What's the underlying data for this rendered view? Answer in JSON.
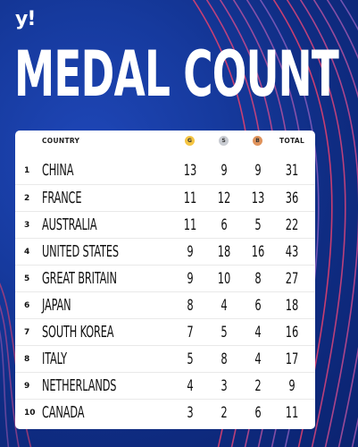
{
  "brand": {
    "logo": "y!"
  },
  "title": "MEDAL COUNT",
  "table": {
    "headers": {
      "country": "COUNTRY",
      "gold": "G",
      "silver": "S",
      "bronze": "B",
      "total": "TOTAL"
    },
    "colors": {
      "gold": "#f5c542",
      "silver": "#c9ccd2",
      "bronze": "#e0935c"
    },
    "rows": [
      {
        "rank": "1",
        "country": "CHINA",
        "gold": "13",
        "silver": "9",
        "bronze": "9",
        "total": "31"
      },
      {
        "rank": "2",
        "country": "FRANCE",
        "gold": "11",
        "silver": "12",
        "bronze": "13",
        "total": "36"
      },
      {
        "rank": "3",
        "country": "AUSTRALIA",
        "gold": "11",
        "silver": "6",
        "bronze": "5",
        "total": "22"
      },
      {
        "rank": "4",
        "country": "UNITED STATES",
        "gold": "9",
        "silver": "18",
        "bronze": "16",
        "total": "43"
      },
      {
        "rank": "5",
        "country": "GREAT BRITAIN",
        "gold": "9",
        "silver": "10",
        "bronze": "8",
        "total": "27"
      },
      {
        "rank": "6",
        "country": "JAPAN",
        "gold": "8",
        "silver": "4",
        "bronze": "6",
        "total": "18"
      },
      {
        "rank": "7",
        "country": "SOUTH KOREA",
        "gold": "7",
        "silver": "5",
        "bronze": "4",
        "total": "16"
      },
      {
        "rank": "8",
        "country": "ITALY",
        "gold": "5",
        "silver": "8",
        "bronze": "4",
        "total": "17"
      },
      {
        "rank": "9",
        "country": "NETHERLANDS",
        "gold": "4",
        "silver": "3",
        "bronze": "2",
        "total": "9"
      },
      {
        "rank": "10",
        "country": "CANADA",
        "gold": "3",
        "silver": "2",
        "bronze": "6",
        "total": "11"
      }
    ]
  }
}
